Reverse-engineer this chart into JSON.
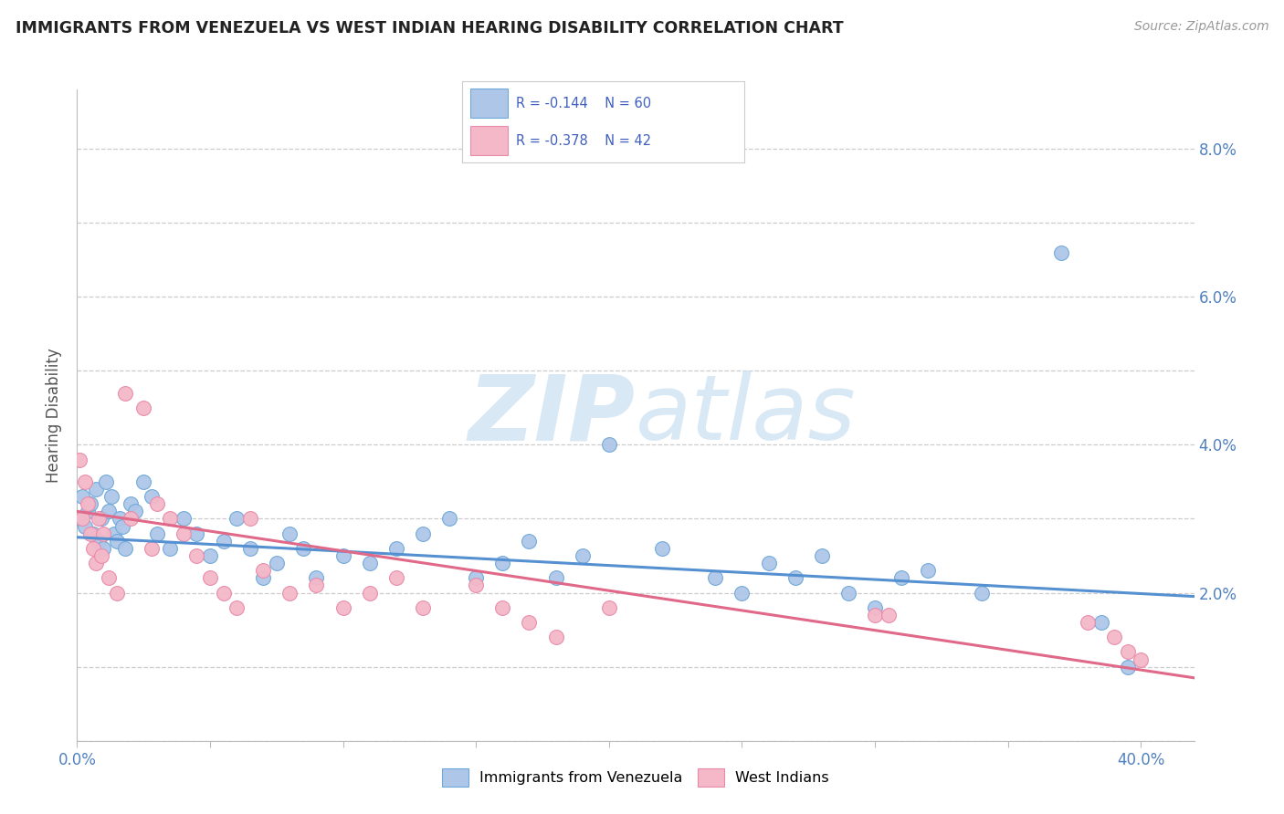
{
  "title": "IMMIGRANTS FROM VENEZUELA VS WEST INDIAN HEARING DISABILITY CORRELATION CHART",
  "source": "Source: ZipAtlas.com",
  "ylabel": "Hearing Disability",
  "xlim": [
    0.0,
    0.42
  ],
  "ylim": [
    0.0,
    0.088
  ],
  "xticks": [
    0.0,
    0.05,
    0.1,
    0.15,
    0.2,
    0.25,
    0.3,
    0.35,
    0.4
  ],
  "yticks": [
    0.0,
    0.01,
    0.02,
    0.03,
    0.04,
    0.05,
    0.06,
    0.07,
    0.08
  ],
  "blue_color": "#aec6e8",
  "pink_color": "#f4b8c8",
  "blue_edge_color": "#6ea8d8",
  "pink_edge_color": "#e88aaa",
  "blue_line_color": "#5590d0",
  "pink_line_color": "#e06888",
  "legend_text_color": "#4060c0",
  "watermark_color": "#c8dff0",
  "tick_label_color": "#5080c0",
  "blue_x": [
    0.001,
    0.002,
    0.003,
    0.004,
    0.005,
    0.006,
    0.007,
    0.008,
    0.009,
    0.01,
    0.011,
    0.012,
    0.013,
    0.014,
    0.015,
    0.016,
    0.017,
    0.018,
    0.02,
    0.022,
    0.025,
    0.028,
    0.03,
    0.035,
    0.04,
    0.045,
    0.05,
    0.055,
    0.06,
    0.065,
    0.07,
    0.075,
    0.08,
    0.085,
    0.09,
    0.1,
    0.11,
    0.12,
    0.13,
    0.14,
    0.15,
    0.16,
    0.17,
    0.18,
    0.19,
    0.2,
    0.22,
    0.24,
    0.25,
    0.26,
    0.27,
    0.28,
    0.29,
    0.3,
    0.31,
    0.32,
    0.34,
    0.37,
    0.385,
    0.395
  ],
  "blue_y": [
    0.03,
    0.033,
    0.029,
    0.031,
    0.032,
    0.028,
    0.034,
    0.027,
    0.03,
    0.026,
    0.035,
    0.031,
    0.033,
    0.028,
    0.027,
    0.03,
    0.029,
    0.026,
    0.032,
    0.031,
    0.035,
    0.033,
    0.028,
    0.026,
    0.03,
    0.028,
    0.025,
    0.027,
    0.03,
    0.026,
    0.022,
    0.024,
    0.028,
    0.026,
    0.022,
    0.025,
    0.024,
    0.026,
    0.028,
    0.03,
    0.022,
    0.024,
    0.027,
    0.022,
    0.025,
    0.04,
    0.026,
    0.022,
    0.02,
    0.024,
    0.022,
    0.025,
    0.02,
    0.018,
    0.022,
    0.023,
    0.02,
    0.066,
    0.016,
    0.01
  ],
  "pink_x": [
    0.001,
    0.002,
    0.003,
    0.004,
    0.005,
    0.006,
    0.007,
    0.008,
    0.009,
    0.01,
    0.012,
    0.015,
    0.018,
    0.02,
    0.025,
    0.028,
    0.03,
    0.035,
    0.04,
    0.045,
    0.05,
    0.055,
    0.06,
    0.065,
    0.07,
    0.08,
    0.09,
    0.1,
    0.11,
    0.12,
    0.13,
    0.15,
    0.16,
    0.17,
    0.18,
    0.2,
    0.3,
    0.305,
    0.38,
    0.39,
    0.395,
    0.4
  ],
  "pink_y": [
    0.038,
    0.03,
    0.035,
    0.032,
    0.028,
    0.026,
    0.024,
    0.03,
    0.025,
    0.028,
    0.022,
    0.02,
    0.047,
    0.03,
    0.045,
    0.026,
    0.032,
    0.03,
    0.028,
    0.025,
    0.022,
    0.02,
    0.018,
    0.03,
    0.023,
    0.02,
    0.021,
    0.018,
    0.02,
    0.022,
    0.018,
    0.021,
    0.018,
    0.016,
    0.014,
    0.018,
    0.017,
    0.017,
    0.016,
    0.014,
    0.012,
    0.011
  ],
  "blue_line_x": [
    0.0,
    0.42
  ],
  "blue_line_y": [
    0.0275,
    0.0195
  ],
  "pink_line_x": [
    0.0,
    0.42
  ],
  "pink_line_y": [
    0.031,
    0.0085
  ]
}
